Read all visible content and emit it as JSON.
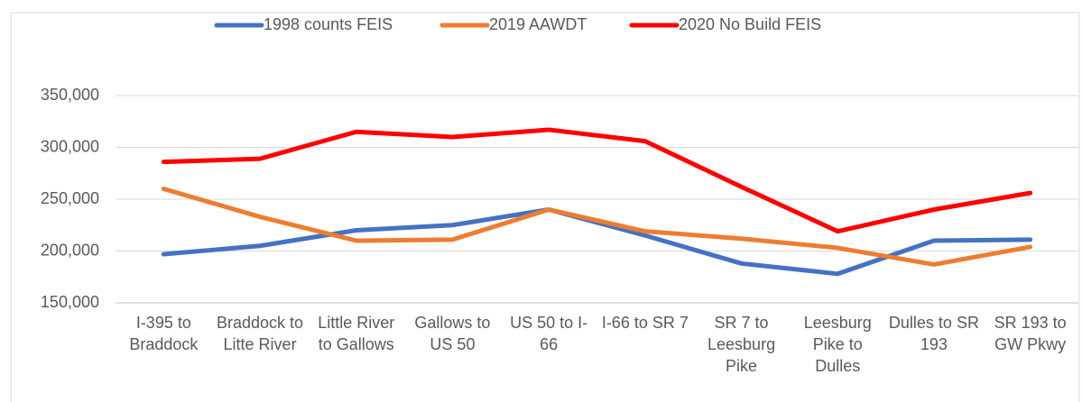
{
  "chart_data": {
    "type": "line",
    "categories": [
      "I-395 to Braddock",
      "Braddock to Litte River",
      "Little River to Gallows",
      "Gallows to US 50",
      "US 50 to I-66",
      "I-66 to SR 7",
      "SR 7 to Leesburg Pike",
      "Leesburg Pike to Dulles",
      "Dulles to SR 193",
      "SR 193 to GW Pkwy"
    ],
    "series": [
      {
        "name": "1998 counts FEIS",
        "color": "#4472c4",
        "values": [
          197000,
          205000,
          220000,
          225000,
          240000,
          215000,
          188000,
          178000,
          210000,
          211000
        ]
      },
      {
        "name": "2019 AAWDT",
        "color": "#ed7d31",
        "values": [
          260000,
          233000,
          210000,
          211000,
          240000,
          219000,
          212000,
          203000,
          187000,
          204000
        ]
      },
      {
        "name": "2020 No Build FEIS",
        "color": "#ff0000",
        "values": [
          286000,
          289000,
          315000,
          310000,
          317000,
          306000,
          262000,
          219000,
          240000,
          256000
        ]
      }
    ],
    "ylim": [
      150000,
      350000
    ],
    "yticks": [
      {
        "value": 150000,
        "label": "150,000"
      },
      {
        "value": 200000,
        "label": "200,000"
      },
      {
        "value": 250000,
        "label": "250,000"
      },
      {
        "value": 300000,
        "label": "300,000"
      },
      {
        "value": 350000,
        "label": "350,000"
      }
    ],
    "grid": true,
    "legend": "top"
  }
}
